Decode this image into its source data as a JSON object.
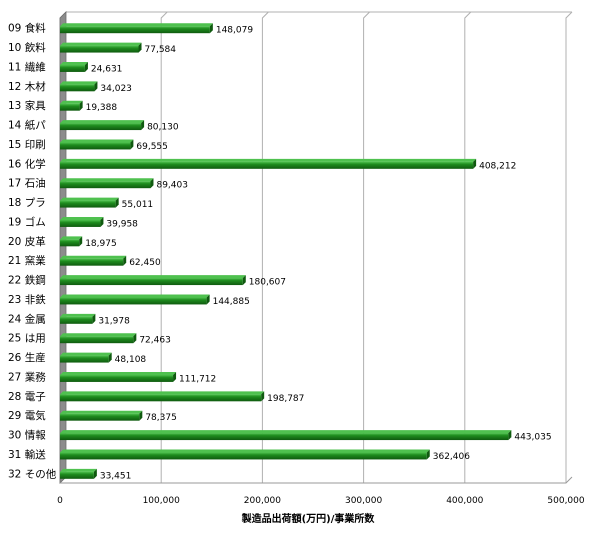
{
  "chart_data": {
    "type": "bar",
    "orientation": "horizontal",
    "categories": [
      "09 食料",
      "10 飲料",
      "11 繊維",
      "12 木材",
      "13 家具",
      "14 紙パ",
      "15 印刷",
      "16 化学",
      "17 石油",
      "18 プラ",
      "19 ゴム",
      "20 皮革",
      "21 窯業",
      "22 鉄鋼",
      "23 非鉄",
      "24 金属",
      "25 は用",
      "26 生産",
      "27 業務",
      "28 電子",
      "29 電気",
      "30 情報",
      "31 輸送",
      "32 その他"
    ],
    "values": [
      148079,
      77584,
      24631,
      34023,
      19388,
      80130,
      69555,
      408212,
      89403,
      55011,
      39958,
      18975,
      62450,
      180607,
      144885,
      31978,
      72463,
      48108,
      111712,
      198787,
      78375,
      443035,
      362406,
      33451
    ],
    "data_labels": [
      "148,079",
      "77,584",
      "24,631",
      "34,023",
      "19,388",
      "80,130",
      "69,555",
      "408,212",
      "89,403",
      "55,011",
      "39,958",
      "18,975",
      "62,450",
      "180,607",
      "144,885",
      "31,978",
      "72,463",
      "48,108",
      "111,712",
      "198,787",
      "78,375",
      "443,035",
      "362,406",
      "33,451"
    ],
    "xlabel": "製造品出荷額(万円)/事業所数",
    "ylabel": "",
    "xlim": [
      0,
      500000
    ],
    "x_ticks": [
      0,
      100000,
      200000,
      300000,
      400000,
      500000
    ],
    "x_tick_labels": [
      "0",
      "100,000",
      "200,000",
      "300,000",
      "400,000",
      "500,000"
    ],
    "grid": "vertical",
    "legend": "none",
    "colors": {
      "bar": "#1e8c1e",
      "bar_light": "#4fc14f",
      "bar_dark": "#0f5a0f",
      "grid": "#b0b0b0",
      "wall": "#8c8c8c"
    }
  }
}
